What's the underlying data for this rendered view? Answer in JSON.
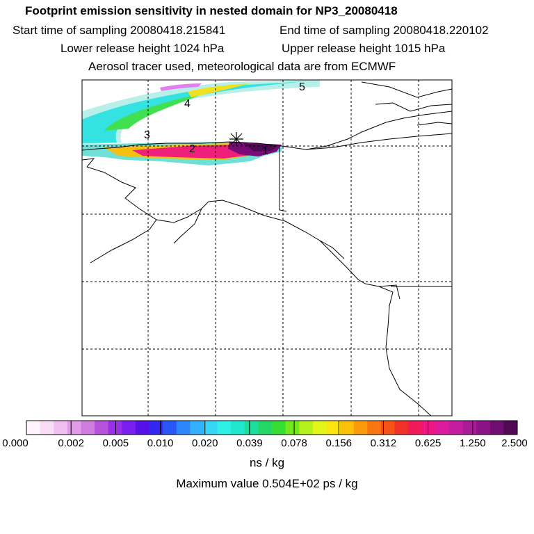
{
  "header": {
    "title": "Footprint emission sensitivity in nested domain for NP3_20080418",
    "start": "Start time of sampling 20080418.215841",
    "end": "End time of sampling 20080418.220102",
    "lower": "Lower release height 1024 hPa",
    "upper": "Upper release height 1015 hPa",
    "tracer": "Aerosol tracer used, meteorological data are from ECMWF"
  },
  "map": {
    "markers": [
      "1",
      "2",
      "3",
      "4",
      "5"
    ],
    "release_point_icon": "asterisk-icon"
  },
  "colorbar": {
    "colors": [
      "#fff4fb",
      "#f9dcf5",
      "#f1c0f1",
      "#e39ae8",
      "#cf7ee0",
      "#b652dc",
      "#9a2fe8",
      "#7b1cf0",
      "#5512e6",
      "#3127f0",
      "#2a55f7",
      "#2f86fb",
      "#33b2fb",
      "#37d6f7",
      "#2ef0e6",
      "#1fe8cf",
      "#1ede9e",
      "#24d868",
      "#36dd33",
      "#73e81c",
      "#b4f01c",
      "#e4f51a",
      "#fde512",
      "#fdc00a",
      "#fb9a0c",
      "#f97712",
      "#f5531a",
      "#f13028",
      "#f01a5a",
      "#ee1584",
      "#dd1ba0",
      "#c51d9f",
      "#aa1b98",
      "#8c1386",
      "#6f0d72",
      "#4f0955"
    ],
    "tick_labels": [
      "0.000",
      "0.002",
      "0.005",
      "0.010",
      "0.020",
      "0.039",
      "0.078",
      "0.156",
      "0.312",
      "0.625",
      "1.250",
      "2.500"
    ],
    "unit": "ns / kg"
  },
  "max_value": "Maximum value  0.504E+02 ps / kg"
}
